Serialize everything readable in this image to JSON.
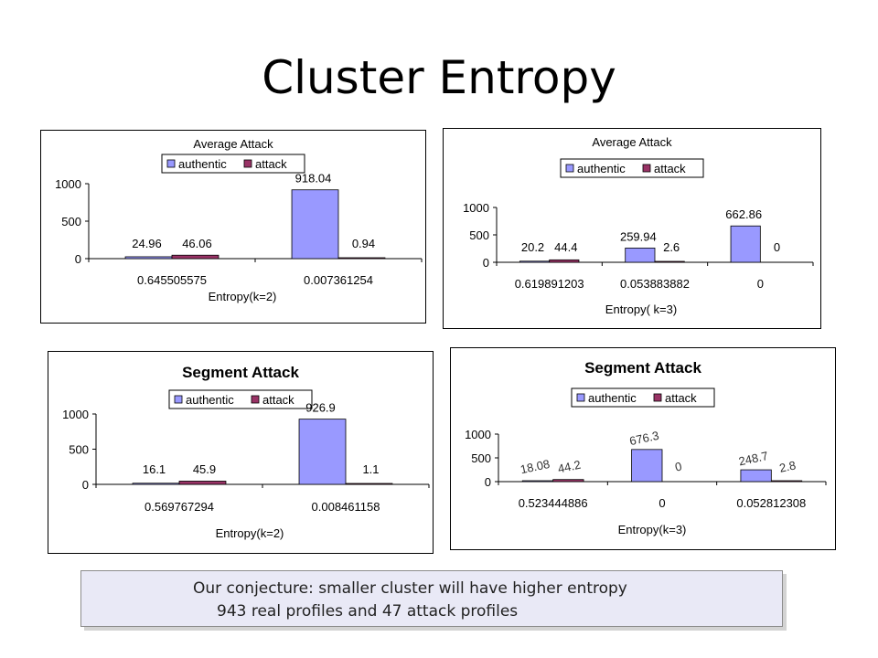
{
  "slide": {
    "title": "Cluster Entropy",
    "note_line1": "Our conjecture: smaller cluster will have higher entropy",
    "note_line2": "943 real profiles and 47 attack profiles"
  },
  "colors": {
    "authentic": "#9999ff",
    "attack": "#993366"
  },
  "chart_data": [
    {
      "type": "bar",
      "title": "Average Attack",
      "xlabel": "Entropy(k=2)",
      "ylabel": "",
      "categories": [
        "0.645505575",
        "0.007361254"
      ],
      "series": [
        {
          "name": "authentic",
          "values": [
            24.96,
            918.04
          ],
          "labels": [
            "24.96",
            "918.04"
          ]
        },
        {
          "name": "attack",
          "values": [
            46.06,
            0.94
          ],
          "labels": [
            "46.06",
            "0.94"
          ]
        }
      ],
      "ylim": [
        0,
        1000
      ],
      "yticks": [
        "0",
        "500",
        "1000"
      ],
      "legend": "top",
      "grid": false
    },
    {
      "type": "bar",
      "title": "Average Attack",
      "xlabel": "Entropy( k=3)",
      "ylabel": "",
      "categories": [
        "0.619891203",
        "0.053883882",
        "0"
      ],
      "series": [
        {
          "name": "authentic",
          "values": [
            20.2,
            259.94,
            662.86
          ],
          "labels": [
            "20.2",
            "259.94",
            "662.86"
          ]
        },
        {
          "name": "attack",
          "values": [
            44.4,
            2.6,
            0
          ],
          "labels": [
            "44.4",
            "2.6",
            "0"
          ]
        }
      ],
      "ylim": [
        0,
        1000
      ],
      "yticks": [
        "0",
        "500",
        "1000"
      ],
      "legend": "top",
      "grid": false
    },
    {
      "type": "bar",
      "title": "Segment Attack",
      "xlabel": "Entropy(k=2)",
      "ylabel": "",
      "categories": [
        "0.569767294",
        "0.008461158"
      ],
      "series": [
        {
          "name": "authentic",
          "values": [
            16.1,
            926.9
          ],
          "labels": [
            "16.1",
            "926.9"
          ]
        },
        {
          "name": "attack",
          "values": [
            45.9,
            1.1
          ],
          "labels": [
            "45.9",
            "1.1"
          ]
        }
      ],
      "ylim": [
        0,
        1000
      ],
      "yticks": [
        "0",
        "500",
        "1000"
      ],
      "legend": "top",
      "grid": false
    },
    {
      "type": "bar",
      "title": "Segment Attack",
      "xlabel": "Entropy(k=3)",
      "ylabel": "",
      "categories": [
        "0.523444886",
        "0",
        "0.052812308"
      ],
      "series": [
        {
          "name": "authentic",
          "values": [
            18.08,
            676.3,
            248.7
          ],
          "labels": [
            "18.08",
            "676.3",
            "248.7"
          ]
        },
        {
          "name": "attack",
          "values": [
            44.2,
            0,
            2.8
          ],
          "labels": [
            "44.2",
            "0",
            "2.8"
          ]
        }
      ],
      "ylim": [
        0,
        1000
      ],
      "yticks": [
        "0",
        "500",
        "1000"
      ],
      "legend": "top",
      "grid": false
    }
  ]
}
